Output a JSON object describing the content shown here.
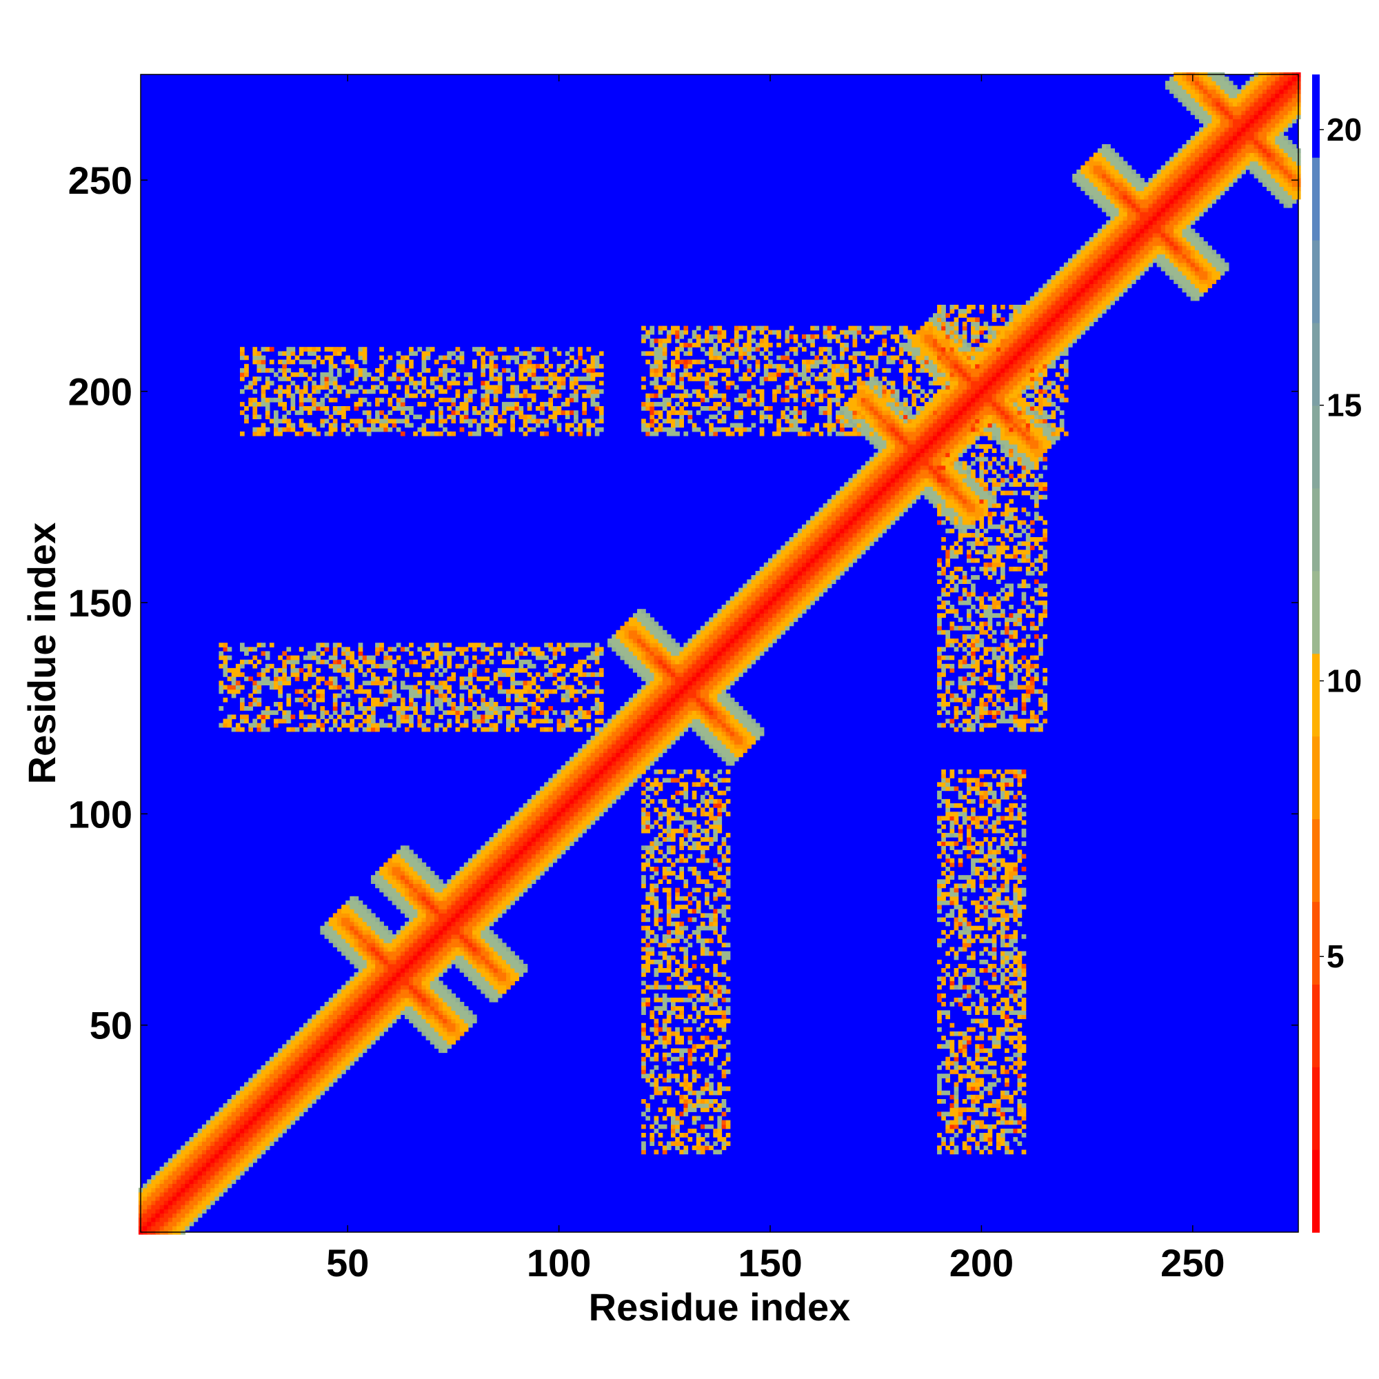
{
  "chart_data": {
    "type": "heatmap",
    "title": "",
    "xlabel": "Residue index",
    "ylabel": "Residue index",
    "n_residues": 275,
    "xlim": [
      1,
      275
    ],
    "ylim": [
      1,
      275
    ],
    "x_ticks": [
      50,
      100,
      150,
      200,
      250
    ],
    "y_ticks": [
      50,
      100,
      150,
      200,
      250
    ],
    "x_tick_labels": [
      "50",
      "100",
      "150",
      "200",
      "250"
    ],
    "y_tick_labels": [
      "50",
      "100",
      "150",
      "200",
      "250"
    ],
    "colorbar": {
      "range": [
        0,
        21
      ],
      "ticks": [
        5,
        10,
        15,
        20
      ],
      "tick_labels": [
        "5",
        "10",
        "15",
        "20"
      ],
      "placement": "right",
      "colors": [
        "#ff0000",
        "#ff1a00",
        "#ff3300",
        "#ff5500",
        "#ff7700",
        "#ff9900",
        "#ffb000",
        "#9bb890",
        "#8fae95",
        "#86a79c",
        "#7c9fa4",
        "#6e95b0",
        "#5a86c0",
        "#0000ff"
      ]
    },
    "background_color": "#0000ff",
    "contact_structures": [
      {
        "kind": "diagonal",
        "from": 1,
        "to": 275
      },
      {
        "kind": "antiparallel",
        "residues_a": [
          55,
          70
        ],
        "residues_b": [
          55,
          70
        ],
        "center": [
          62,
          62
        ]
      },
      {
        "kind": "antiparallel",
        "center": [
          74,
          74
        ]
      },
      {
        "kind": "antiparallel",
        "center": [
          130,
          130
        ]
      },
      {
        "kind": "antiparallel",
        "center": [
          185,
          185
        ]
      },
      {
        "kind": "antiparallel",
        "center": [
          200,
          200
        ]
      },
      {
        "kind": "antiparallel",
        "center": [
          240,
          240
        ]
      },
      {
        "kind": "antiparallel",
        "center": [
          262,
          262
        ]
      },
      {
        "kind": "offdiag_band",
        "x_range": [
          20,
          110
        ],
        "y_range": [
          120,
          140
        ]
      },
      {
        "kind": "offdiag_band",
        "x_range": [
          25,
          110
        ],
        "y_range": [
          190,
          210
        ]
      },
      {
        "kind": "offdiag_band",
        "x_range": [
          120,
          140
        ],
        "y_range": [
          20,
          110
        ]
      },
      {
        "kind": "offdiag_band",
        "x_range": [
          190,
          210
        ],
        "y_range": [
          20,
          110
        ]
      },
      {
        "kind": "offdiag_band",
        "x_range": [
          120,
          220
        ],
        "y_range": [
          190,
          215
        ]
      },
      {
        "kind": "offdiag_band",
        "x_range": [
          190,
          215
        ],
        "y_range": [
          120,
          220
        ]
      }
    ]
  }
}
